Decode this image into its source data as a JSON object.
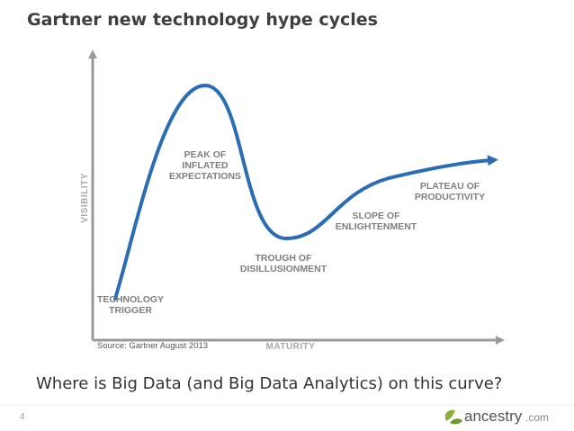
{
  "header": {
    "title": "Gartner new technology hype cycles"
  },
  "diagram": {
    "y_axis_label": "VISIBILITY",
    "x_axis_label": "MATURITY",
    "phases": [
      {
        "lines": [
          "TECHNOLOGY",
          "TRIGGER"
        ]
      },
      {
        "lines": [
          "PEAK OF",
          "INFLATED",
          "EXPECTATIONS"
        ]
      },
      {
        "lines": [
          "TROUGH OF",
          "DISILLUSIONMENT"
        ]
      },
      {
        "lines": [
          "SLOPE OF",
          "ENLIGHTENMENT"
        ]
      },
      {
        "lines": [
          "PLATEAU OF",
          "PRODUCTIVITY"
        ]
      }
    ],
    "source": "Source: Gartner August 2013"
  },
  "question": "Where is Big Data (and Big Data Analytics) on this curve?",
  "footer": {
    "page_number": "4",
    "logo": {
      "name": "ancestry",
      "suffix": ".com"
    }
  }
}
